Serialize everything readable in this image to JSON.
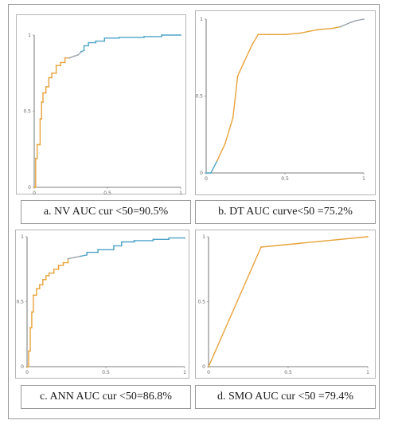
{
  "chart_data": [
    {
      "id": "a",
      "type": "line",
      "caption": "a.  NV AUC cur <50=90.5%",
      "xlim": [
        0,
        1
      ],
      "ylim": [
        0,
        1
      ],
      "xticks": [
        {
          "v": 0,
          "label": "0"
        },
        {
          "v": 0.5,
          "label": "0.5"
        },
        {
          "v": 1,
          "label": "1"
        }
      ],
      "yticks": [
        {
          "v": 0,
          "label": "0"
        },
        {
          "v": 0.5,
          "label": "0.5"
        },
        {
          "v": 1,
          "label": "1"
        }
      ],
      "series": [
        {
          "color": "#E8A33A",
          "points": [
            [
              0,
              0
            ],
            [
              0.01,
              0
            ],
            [
              0.01,
              0.19
            ],
            [
              0.02,
              0.19
            ],
            [
              0.02,
              0.28
            ],
            [
              0.04,
              0.28
            ],
            [
              0.04,
              0.45
            ],
            [
              0.05,
              0.45
            ],
            [
              0.05,
              0.56
            ],
            [
              0.06,
              0.56
            ],
            [
              0.06,
              0.62
            ],
            [
              0.08,
              0.62
            ],
            [
              0.08,
              0.66
            ],
            [
              0.1,
              0.66
            ],
            [
              0.1,
              0.72
            ],
            [
              0.12,
              0.72
            ],
            [
              0.12,
              0.75
            ],
            [
              0.15,
              0.75
            ],
            [
              0.15,
              0.8
            ],
            [
              0.18,
              0.8
            ],
            [
              0.18,
              0.82
            ],
            [
              0.21,
              0.82
            ],
            [
              0.21,
              0.85
            ],
            [
              0.24,
              0.85
            ]
          ]
        },
        {
          "color": "#9AA3AC",
          "points": [
            [
              0.24,
              0.85
            ],
            [
              0.27,
              0.86
            ],
            [
              0.3,
              0.87
            ],
            [
              0.32,
              0.89
            ]
          ]
        },
        {
          "color": "#4FA3C9",
          "points": [
            [
              0.32,
              0.89
            ],
            [
              0.34,
              0.9
            ],
            [
              0.34,
              0.93
            ],
            [
              0.37,
              0.93
            ],
            [
              0.37,
              0.95
            ],
            [
              0.42,
              0.95
            ],
            [
              0.42,
              0.96
            ],
            [
              0.48,
              0.96
            ],
            [
              0.48,
              0.98
            ],
            [
              0.58,
              0.98
            ],
            [
              0.58,
              0.985
            ],
            [
              0.75,
              0.985
            ],
            [
              0.75,
              0.99
            ],
            [
              0.87,
              0.99
            ],
            [
              0.87,
              1
            ],
            [
              1,
              1
            ]
          ]
        }
      ]
    },
    {
      "id": "b",
      "type": "line",
      "caption": "b. DT AUC curve<50 =75.2%",
      "xlim": [
        0,
        1
      ],
      "ylim": [
        0,
        1
      ],
      "xticks": [
        {
          "v": 0,
          "label": "0"
        },
        {
          "v": 0.5,
          "label": "0.5"
        },
        {
          "v": 1,
          "label": "1"
        }
      ],
      "yticks": [
        {
          "v": 0,
          "label": "0"
        },
        {
          "v": 0.5,
          "label": "0.5"
        },
        {
          "v": 1,
          "label": "1"
        }
      ],
      "series": [
        {
          "color": "#4FA3C9",
          "points": [
            [
              0,
              0
            ],
            [
              0.03,
              0
            ],
            [
              0.07,
              0.08
            ]
          ]
        },
        {
          "color": "#E8A33A",
          "points": [
            [
              0.07,
              0.08
            ],
            [
              0.12,
              0.19
            ],
            [
              0.17,
              0.36
            ],
            [
              0.2,
              0.63
            ],
            [
              0.24,
              0.72
            ],
            [
              0.29,
              0.83
            ],
            [
              0.33,
              0.9
            ],
            [
              0.4,
              0.9
            ],
            [
              0.5,
              0.9
            ],
            [
              0.6,
              0.91
            ],
            [
              0.7,
              0.93
            ],
            [
              0.8,
              0.94
            ],
            [
              0.85,
              0.95
            ]
          ]
        },
        {
          "color": "#9AA3AC",
          "points": [
            [
              0.85,
              0.95
            ],
            [
              0.92,
              0.98
            ],
            [
              0.95,
              0.99
            ],
            [
              1,
              1
            ]
          ]
        }
      ]
    },
    {
      "id": "c",
      "type": "line",
      "caption": "c. ANN AUC cur <50=86.8%",
      "xlim": [
        0,
        1
      ],
      "ylim": [
        0,
        1
      ],
      "xticks": [
        {
          "v": 0,
          "label": "0"
        },
        {
          "v": 0.5,
          "label": "0.5"
        },
        {
          "v": 1,
          "label": "1"
        }
      ],
      "yticks": [
        {
          "v": 0,
          "label": "0"
        },
        {
          "v": 0.5,
          "label": "0.5"
        },
        {
          "v": 1,
          "label": "1"
        }
      ],
      "series": [
        {
          "color": "#E8A33A",
          "points": [
            [
              0,
              0
            ],
            [
              0.01,
              0
            ],
            [
              0.01,
              0.12
            ],
            [
              0.02,
              0.12
            ],
            [
              0.02,
              0.3
            ],
            [
              0.03,
              0.3
            ],
            [
              0.03,
              0.42
            ],
            [
              0.04,
              0.42
            ],
            [
              0.04,
              0.55
            ],
            [
              0.06,
              0.55
            ],
            [
              0.06,
              0.6
            ],
            [
              0.08,
              0.6
            ],
            [
              0.08,
              0.63
            ],
            [
              0.1,
              0.63
            ],
            [
              0.1,
              0.67
            ],
            [
              0.12,
              0.67
            ],
            [
              0.12,
              0.7
            ],
            [
              0.14,
              0.7
            ],
            [
              0.14,
              0.72
            ],
            [
              0.17,
              0.72
            ],
            [
              0.17,
              0.75
            ],
            [
              0.2,
              0.75
            ],
            [
              0.2,
              0.78
            ],
            [
              0.23,
              0.78
            ],
            [
              0.23,
              0.8
            ],
            [
              0.26,
              0.8
            ],
            [
              0.26,
              0.83
            ]
          ]
        },
        {
          "color": "#9AA3AC",
          "points": [
            [
              0.26,
              0.83
            ],
            [
              0.3,
              0.84
            ],
            [
              0.34,
              0.85
            ]
          ]
        },
        {
          "color": "#4FA3C9",
          "points": [
            [
              0.34,
              0.85
            ],
            [
              0.38,
              0.86
            ],
            [
              0.38,
              0.88
            ],
            [
              0.45,
              0.88
            ],
            [
              0.45,
              0.9
            ],
            [
              0.55,
              0.9
            ],
            [
              0.55,
              0.93
            ],
            [
              0.6,
              0.93
            ],
            [
              0.6,
              0.96
            ],
            [
              0.68,
              0.96
            ],
            [
              0.68,
              0.97
            ],
            [
              0.8,
              0.97
            ],
            [
              0.8,
              0.98
            ],
            [
              0.9,
              0.98
            ],
            [
              0.9,
              0.99
            ],
            [
              1,
              0.99
            ]
          ]
        }
      ]
    },
    {
      "id": "d",
      "type": "line",
      "caption": "d. SMO AUC cur <50 =79.4%",
      "xlim": [
        0,
        1
      ],
      "ylim": [
        0,
        1
      ],
      "xticks": [
        {
          "v": 0,
          "label": "0"
        },
        {
          "v": 0.5,
          "label": "0.5"
        },
        {
          "v": 1,
          "label": "1"
        }
      ],
      "yticks": [
        {
          "v": 0,
          "label": "0"
        },
        {
          "v": 0.5,
          "label": "0.5"
        },
        {
          "v": 1,
          "label": "1"
        }
      ],
      "series": [
        {
          "color": "#E8A33A",
          "points": [
            [
              0,
              0
            ],
            [
              0.33,
              0.92
            ],
            [
              1,
              1
            ]
          ]
        }
      ]
    }
  ]
}
